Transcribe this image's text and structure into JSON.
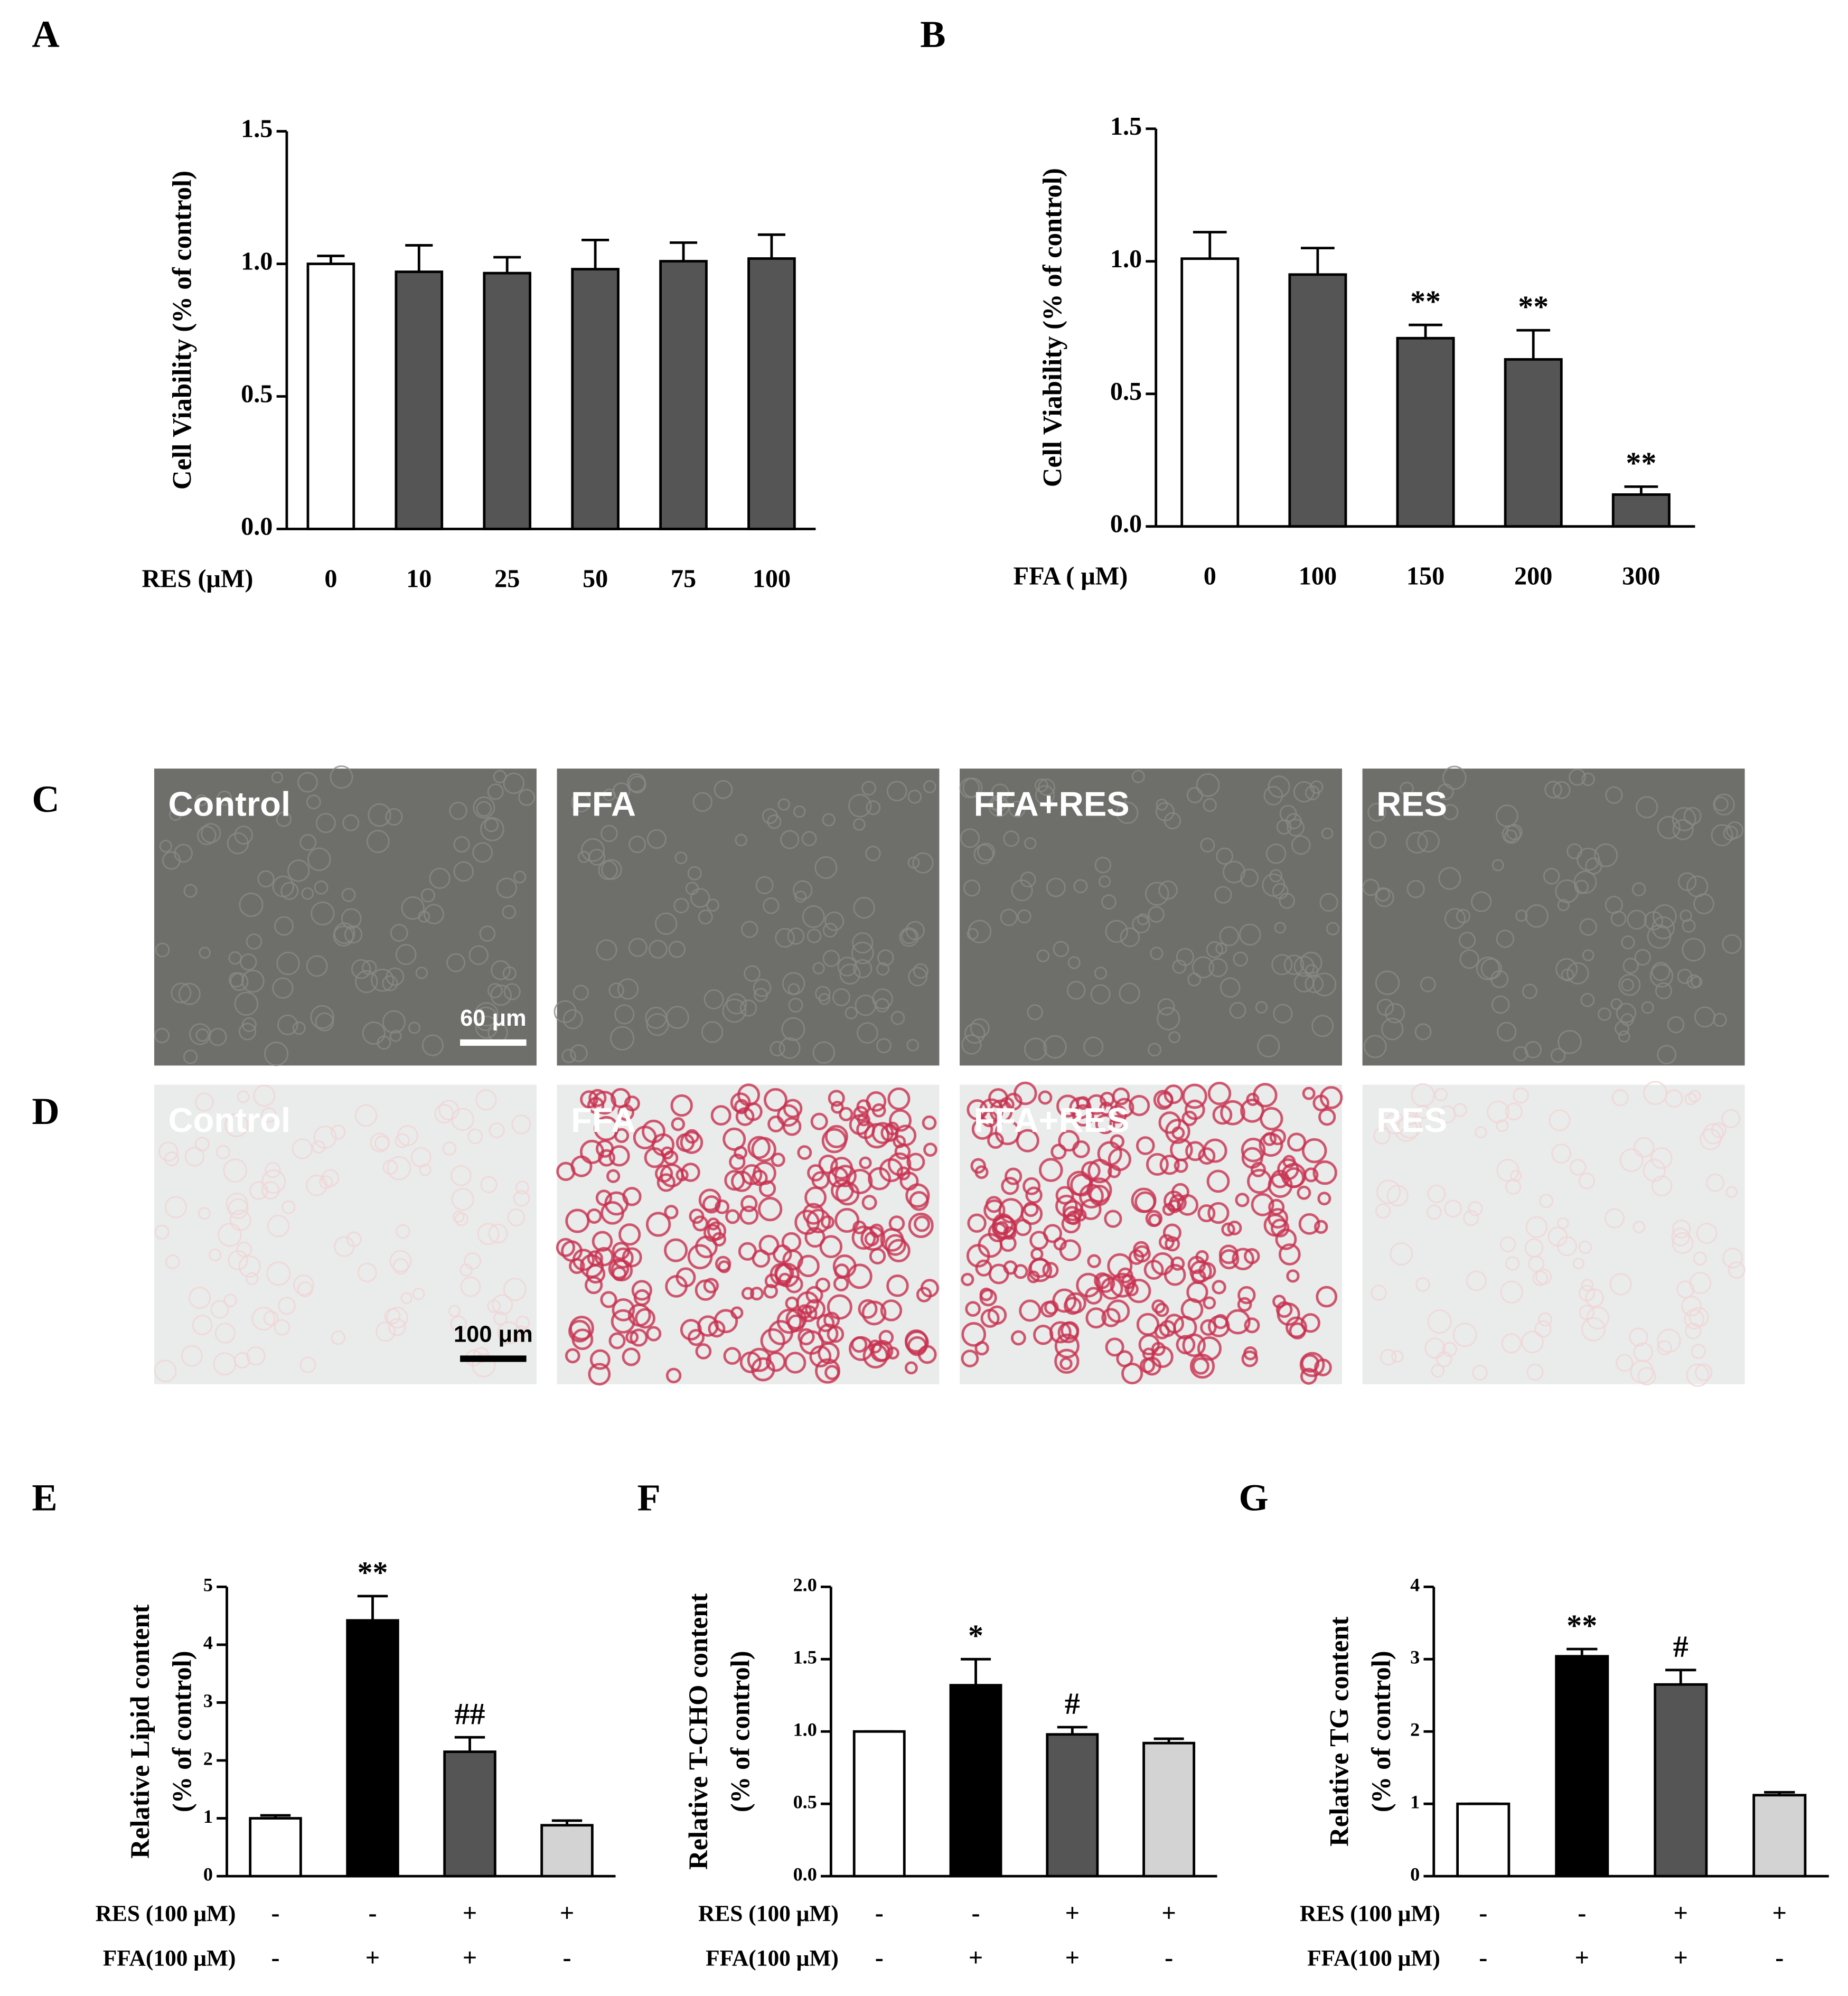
{
  "chart_data": [
    {
      "type": "bar",
      "panel": "A",
      "ylabel": [
        "Cell Viability (% of control)"
      ],
      "xlabel": "RES (μM)",
      "categories": [
        "0",
        "10",
        "25",
        "50",
        "75",
        "100"
      ],
      "values": [
        1.0,
        0.97,
        0.965,
        0.98,
        1.01,
        1.02
      ],
      "errors": [
        0.03,
        0.1,
        0.06,
        0.11,
        0.07,
        0.09
      ],
      "colors": [
        "#ffffff",
        "#555555",
        "#555555",
        "#555555",
        "#555555",
        "#555555"
      ],
      "ylim": [
        0,
        1.5
      ],
      "yticks": [
        {
          "value": 0,
          "label": "0.0"
        },
        {
          "value": 0.5,
          "label": "0.5"
        },
        {
          "value": 1,
          "label": "1.0"
        },
        {
          "value": 1.5,
          "label": "1.5"
        }
      ]
    },
    {
      "type": "bar",
      "panel": "B",
      "ylabel": [
        "Cell Viability (% of control)"
      ],
      "xlabel": "FFA ( μM)",
      "categories": [
        "0",
        "100",
        "150",
        "200",
        "300"
      ],
      "values": [
        1.01,
        0.95,
        0.71,
        0.63,
        0.12
      ],
      "errors": [
        0.1,
        0.1,
        0.05,
        0.11,
        0.03
      ],
      "colors": [
        "#ffffff",
        "#555555",
        "#555555",
        "#555555",
        "#555555"
      ],
      "significance": [
        null,
        null,
        "**",
        "**",
        "**"
      ],
      "ylim": [
        0,
        1.5
      ],
      "yticks": [
        {
          "value": 0,
          "label": "0.0"
        },
        {
          "value": 0.5,
          "label": "0.5"
        },
        {
          "value": 1,
          "label": "1.0"
        },
        {
          "value": 1.5,
          "label": "1.5"
        }
      ]
    },
    {
      "type": "bar",
      "panel": "E",
      "ylabel": [
        "Relative Lipid content",
        "(% of control)"
      ],
      "values": [
        1.0,
        4.42,
        2.15,
        0.88
      ],
      "errors": [
        0.05,
        0.42,
        0.25,
        0.08
      ],
      "colors": [
        "#ffffff",
        "#000000",
        "#555555",
        "#d3d3d3"
      ],
      "significance": [
        null,
        "**",
        "##",
        null
      ],
      "treatment_rows": [
        {
          "name": "RES (100 μM)",
          "values": [
            "-",
            "-",
            "+",
            "+"
          ]
        },
        {
          "name": "FFA(100 μM)",
          "values": [
            "-",
            "+",
            "+",
            "-"
          ]
        }
      ],
      "ylim": [
        0,
        5
      ],
      "yticks": [
        0,
        1,
        2,
        3,
        4,
        5
      ]
    },
    {
      "type": "bar",
      "panel": "F",
      "ylabel": [
        "Relative T-CHO content",
        "(% of control)"
      ],
      "values": [
        1.0,
        1.32,
        0.98,
        0.92
      ],
      "errors": [
        0,
        0.18,
        0.05,
        0.03
      ],
      "colors": [
        "#ffffff",
        "#000000",
        "#555555",
        "#d3d3d3"
      ],
      "significance": [
        null,
        "*",
        "#",
        null
      ],
      "treatment_rows": [
        {
          "name": "RES (100 μM)",
          "values": [
            "-",
            "-",
            "+",
            "+"
          ]
        },
        {
          "name": "FFA(100 μM)",
          "values": [
            "-",
            "+",
            "+",
            "-"
          ]
        }
      ],
      "ylim": [
        0,
        2
      ],
      "yticks": [
        {
          "value": 0,
          "label": "0.0"
        },
        {
          "value": 0.5,
          "label": "0.5"
        },
        {
          "value": 1,
          "label": "1.0"
        },
        {
          "value": 1.5,
          "label": "1.5"
        },
        {
          "value": 2,
          "label": "2.0"
        }
      ]
    },
    {
      "type": "bar",
      "panel": "G",
      "ylabel": [
        "Relative TG content",
        "(% of control)"
      ],
      "values": [
        1.0,
        3.04,
        2.65,
        1.12
      ],
      "errors": [
        0,
        0.1,
        0.2,
        0.04
      ],
      "colors": [
        "#ffffff",
        "#000000",
        "#555555",
        "#d3d3d3"
      ],
      "significance": [
        null,
        "**",
        "#",
        null
      ],
      "treatment_rows": [
        {
          "name": "RES (100 μM)",
          "values": [
            "-",
            "-",
            "+",
            "+"
          ]
        },
        {
          "name": "FFA(100 μM)",
          "values": [
            "-",
            "+",
            "+",
            "-"
          ]
        }
      ],
      "ylim": [
        0,
        4
      ],
      "yticks": [
        0,
        1,
        2,
        3,
        4
      ]
    }
  ],
  "image_panels": [
    {
      "panel": "C",
      "labels": [
        "Control",
        "FFA",
        "FFA+RES",
        "RES"
      ],
      "scale_bar": "60 μm"
    },
    {
      "panel": "D",
      "labels": [
        "Control",
        "FFA",
        "FFA+RES",
        "RES"
      ],
      "scale_bar": "100 μm"
    }
  ]
}
